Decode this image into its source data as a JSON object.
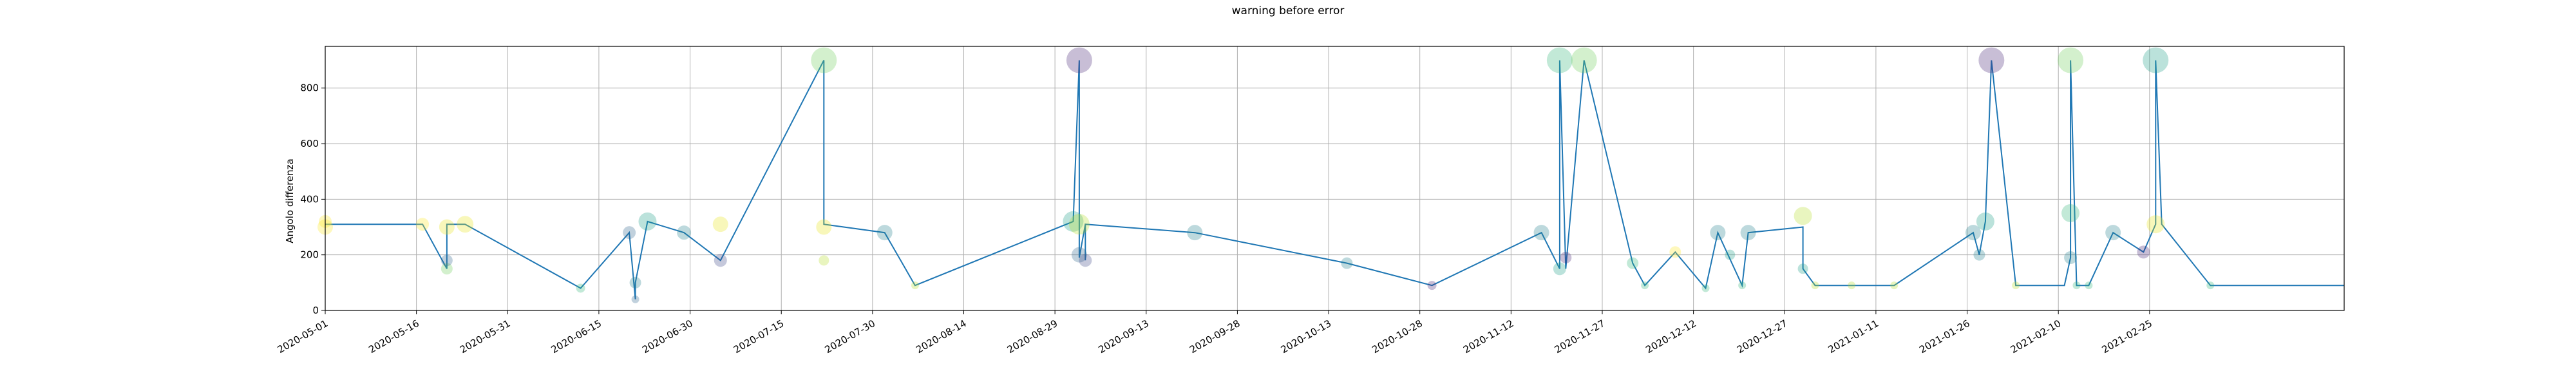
{
  "chart_data": {
    "type": "scatter",
    "title": "warning before error",
    "xlabel": "",
    "ylabel": "Angolo differenza",
    "grid": true,
    "xlim": [
      "2020-05-01",
      "2021-03-29"
    ],
    "ylim": [
      0,
      950
    ],
    "x_ticks": [
      "2020-05-01",
      "2020-05-16",
      "2020-05-31",
      "2020-06-15",
      "2020-06-30",
      "2020-07-15",
      "2020-07-30",
      "2020-08-14",
      "2020-08-29",
      "2020-09-13",
      "2020-09-28",
      "2020-10-13",
      "2020-10-28",
      "2020-11-12",
      "2020-11-27",
      "2020-12-12",
      "2020-12-27",
      "2021-01-11",
      "2021-01-26",
      "2021-02-10",
      "2021-02-25"
    ],
    "y_ticks": [
      0,
      200,
      400,
      600,
      800
    ],
    "line_color": "#1f77b4",
    "points": [
      {
        "x": "2020-05-01",
        "y": 300,
        "size": 12,
        "color": "#fde725"
      },
      {
        "x": "2020-05-01",
        "y": 320,
        "size": 10,
        "color": "#fde725"
      },
      {
        "x": "2020-05-17",
        "y": 310,
        "size": 10,
        "color": "#fde725"
      },
      {
        "x": "2020-05-21",
        "y": 300,
        "size": 12,
        "color": "#e8e419"
      },
      {
        "x": "2020-05-21",
        "y": 150,
        "size": 9,
        "color": "#6ece58"
      },
      {
        "x": "2020-05-21",
        "y": 180,
        "size": 9,
        "color": "#31688e"
      },
      {
        "x": "2020-05-24",
        "y": 310,
        "size": 13,
        "color": "#e8e419"
      },
      {
        "x": "2020-06-12",
        "y": 80,
        "size": 7,
        "color": "#35b779"
      },
      {
        "x": "2020-06-20",
        "y": 280,
        "size": 10,
        "color": "#31688e"
      },
      {
        "x": "2020-06-21",
        "y": 100,
        "size": 9,
        "color": "#26828e"
      },
      {
        "x": "2020-06-21",
        "y": 40,
        "size": 6,
        "color": "#31688e"
      },
      {
        "x": "2020-06-23",
        "y": 320,
        "size": 14,
        "color": "#1f9e89"
      },
      {
        "x": "2020-06-29",
        "y": 280,
        "size": 11,
        "color": "#26828e"
      },
      {
        "x": "2020-07-05",
        "y": 180,
        "size": 10,
        "color": "#3e4a89"
      },
      {
        "x": "2020-07-05",
        "y": 310,
        "size": 12,
        "color": "#e8e419"
      },
      {
        "x": "2020-07-22",
        "y": 900,
        "size": 20,
        "color": "#6ece58"
      },
      {
        "x": "2020-07-22",
        "y": 300,
        "size": 12,
        "color": "#e8e419"
      },
      {
        "x": "2020-07-22",
        "y": 180,
        "size": 8,
        "color": "#b5de2b"
      },
      {
        "x": "2020-08-01",
        "y": 280,
        "size": 12,
        "color": "#26828e"
      },
      {
        "x": "2020-08-06",
        "y": 90,
        "size": 6,
        "color": "#b5de2b"
      },
      {
        "x": "2020-09-01",
        "y": 320,
        "size": 16,
        "color": "#1f9e89"
      },
      {
        "x": "2020-09-02",
        "y": 900,
        "size": 20,
        "color": "#482878"
      },
      {
        "x": "2020-09-02",
        "y": 310,
        "size": 16,
        "color": "#b5de2b"
      },
      {
        "x": "2020-09-02",
        "y": 200,
        "size": 12,
        "color": "#31688e"
      },
      {
        "x": "2020-09-03",
        "y": 180,
        "size": 10,
        "color": "#3e4a89"
      },
      {
        "x": "2020-09-21",
        "y": 280,
        "size": 12,
        "color": "#26828e"
      },
      {
        "x": "2020-10-16",
        "y": 170,
        "size": 9,
        "color": "#26828e"
      },
      {
        "x": "2020-10-30",
        "y": 90,
        "size": 7,
        "color": "#482878"
      },
      {
        "x": "2020-11-17",
        "y": 280,
        "size": 12,
        "color": "#26828e"
      },
      {
        "x": "2020-11-20",
        "y": 900,
        "size": 20,
        "color": "#35b779"
      },
      {
        "x": "2020-11-20",
        "y": 150,
        "size": 10,
        "color": "#1f9e89"
      },
      {
        "x": "2020-11-21",
        "y": 190,
        "size": 9,
        "color": "#482878"
      },
      {
        "x": "2020-11-24",
        "y": 900,
        "size": 20,
        "color": "#6ece58"
      },
      {
        "x": "2020-12-02",
        "y": 170,
        "size": 9,
        "color": "#35b779"
      },
      {
        "x": "2020-12-04",
        "y": 90,
        "size": 6,
        "color": "#35b779"
      },
      {
        "x": "2020-12-09",
        "y": 210,
        "size": 9,
        "color": "#fde725"
      },
      {
        "x": "2020-12-14",
        "y": 80,
        "size": 6,
        "color": "#35b779"
      },
      {
        "x": "2020-12-16",
        "y": 280,
        "size": 12,
        "color": "#26828e"
      },
      {
        "x": "2020-12-18",
        "y": 200,
        "size": 8,
        "color": "#1f9e89"
      },
      {
        "x": "2020-12-20",
        "y": 90,
        "size": 6,
        "color": "#35b779"
      },
      {
        "x": "2020-12-21",
        "y": 280,
        "size": 12,
        "color": "#26828e"
      },
      {
        "x": "2020-12-30",
        "y": 340,
        "size": 14,
        "color": "#b5de2b"
      },
      {
        "x": "2020-12-30",
        "y": 150,
        "size": 8,
        "color": "#1f9e89"
      },
      {
        "x": "2021-01-01",
        "y": 90,
        "size": 6,
        "color": "#b5de2b"
      },
      {
        "x": "2021-01-07",
        "y": 90,
        "size": 6,
        "color": "#b5de2b"
      },
      {
        "x": "2021-01-14",
        "y": 90,
        "size": 6,
        "color": "#b5de2b"
      },
      {
        "x": "2021-01-27",
        "y": 280,
        "size": 12,
        "color": "#26828e"
      },
      {
        "x": "2021-01-28",
        "y": 200,
        "size": 9,
        "color": "#26828e"
      },
      {
        "x": "2021-01-29",
        "y": 320,
        "size": 14,
        "color": "#1f9e89"
      },
      {
        "x": "2021-01-30",
        "y": 900,
        "size": 20,
        "color": "#482878"
      },
      {
        "x": "2021-02-03",
        "y": 90,
        "size": 6,
        "color": "#b5de2b"
      },
      {
        "x": "2021-02-12",
        "y": 900,
        "size": 20,
        "color": "#6ece58"
      },
      {
        "x": "2021-02-12",
        "y": 350,
        "size": 14,
        "color": "#35b779"
      },
      {
        "x": "2021-02-12",
        "y": 190,
        "size": 10,
        "color": "#26828e"
      },
      {
        "x": "2021-02-13",
        "y": 90,
        "size": 6,
        "color": "#35b779"
      },
      {
        "x": "2021-02-15",
        "y": 90,
        "size": 6,
        "color": "#35b779"
      },
      {
        "x": "2021-02-19",
        "y": 280,
        "size": 12,
        "color": "#26828e"
      },
      {
        "x": "2021-02-24",
        "y": 210,
        "size": 10,
        "color": "#482878"
      },
      {
        "x": "2021-02-26",
        "y": 900,
        "size": 20,
        "color": "#1f9e89"
      },
      {
        "x": "2021-02-26",
        "y": 310,
        "size": 14,
        "color": "#e8e419"
      },
      {
        "x": "2021-03-07",
        "y": 90,
        "size": 6,
        "color": "#35b779"
      }
    ],
    "line": [
      {
        "x": "2020-05-01",
        "y": 310
      },
      {
        "x": "2020-05-17",
        "y": 310
      },
      {
        "x": "2020-05-21",
        "y": 150
      },
      {
        "x": "2020-05-21",
        "y": 310
      },
      {
        "x": "2020-05-24",
        "y": 310
      },
      {
        "x": "2020-06-12",
        "y": 80
      },
      {
        "x": "2020-06-20",
        "y": 280
      },
      {
        "x": "2020-06-21",
        "y": 40
      },
      {
        "x": "2020-06-21",
        "y": 100
      },
      {
        "x": "2020-06-23",
        "y": 320
      },
      {
        "x": "2020-06-29",
        "y": 280
      },
      {
        "x": "2020-07-05",
        "y": 180
      },
      {
        "x": "2020-07-22",
        "y": 900
      },
      {
        "x": "2020-07-22",
        "y": 310
      },
      {
        "x": "2020-08-01",
        "y": 280
      },
      {
        "x": "2020-08-06",
        "y": 90
      },
      {
        "x": "2020-09-01",
        "y": 320
      },
      {
        "x": "2020-09-02",
        "y": 900
      },
      {
        "x": "2020-09-02",
        "y": 190
      },
      {
        "x": "2020-09-03",
        "y": 310
      },
      {
        "x": "2020-09-03",
        "y": 180
      },
      {
        "x": "2020-09-03",
        "y": 310
      },
      {
        "x": "2020-09-21",
        "y": 280
      },
      {
        "x": "2020-10-16",
        "y": 170
      },
      {
        "x": "2020-10-30",
        "y": 90
      },
      {
        "x": "2020-11-17",
        "y": 280
      },
      {
        "x": "2020-11-20",
        "y": 150
      },
      {
        "x": "2020-11-20",
        "y": 900
      },
      {
        "x": "2020-11-21",
        "y": 150
      },
      {
        "x": "2020-11-24",
        "y": 900
      },
      {
        "x": "2020-12-02",
        "y": 170
      },
      {
        "x": "2020-12-04",
        "y": 90
      },
      {
        "x": "2020-12-09",
        "y": 210
      },
      {
        "x": "2020-12-14",
        "y": 80
      },
      {
        "x": "2020-12-16",
        "y": 280
      },
      {
        "x": "2020-12-20",
        "y": 90
      },
      {
        "x": "2020-12-21",
        "y": 280
      },
      {
        "x": "2020-12-30",
        "y": 300
      },
      {
        "x": "2020-12-30",
        "y": 150
      },
      {
        "x": "2021-01-01",
        "y": 90
      },
      {
        "x": "2021-01-14",
        "y": 90
      },
      {
        "x": "2021-01-27",
        "y": 280
      },
      {
        "x": "2021-01-28",
        "y": 200
      },
      {
        "x": "2021-01-29",
        "y": 320
      },
      {
        "x": "2021-01-30",
        "y": 900
      },
      {
        "x": "2021-02-03",
        "y": 90
      },
      {
        "x": "2021-02-11",
        "y": 90
      },
      {
        "x": "2021-02-12",
        "y": 190
      },
      {
        "x": "2021-02-12",
        "y": 900
      },
      {
        "x": "2021-02-13",
        "y": 90
      },
      {
        "x": "2021-02-15",
        "y": 90
      },
      {
        "x": "2021-02-19",
        "y": 280
      },
      {
        "x": "2021-02-24",
        "y": 210
      },
      {
        "x": "2021-02-26",
        "y": 310
      },
      {
        "x": "2021-02-26",
        "y": 900
      },
      {
        "x": "2021-02-27",
        "y": 310
      },
      {
        "x": "2021-03-07",
        "y": 90
      },
      {
        "x": "2021-03-29",
        "y": 90
      }
    ]
  }
}
